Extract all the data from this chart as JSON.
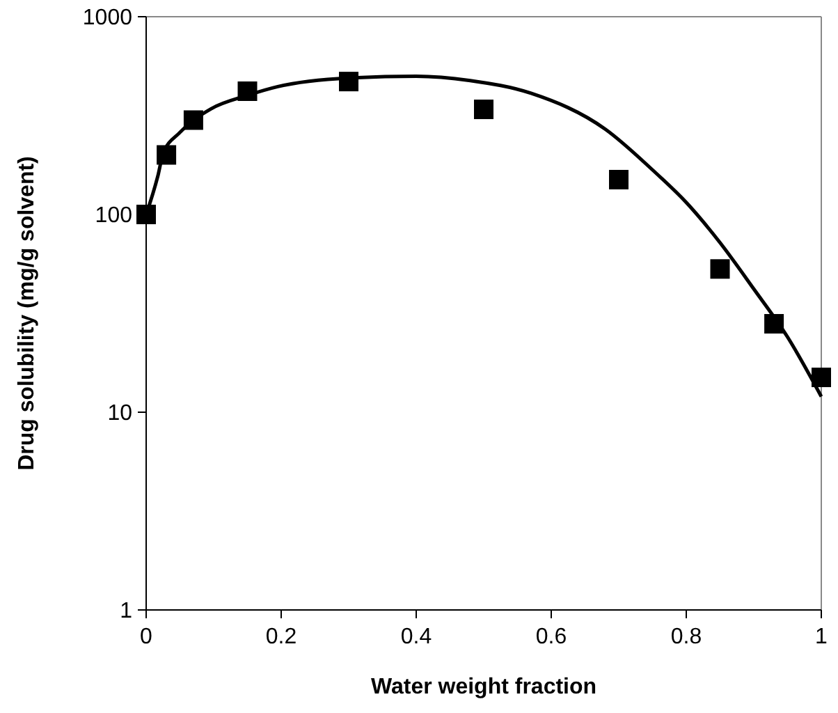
{
  "chart_data": {
    "type": "scatter",
    "xlabel": "Water weight fraction",
    "ylabel": "Drug solubility (mg/g solvent)",
    "log": "y",
    "xlim": [
      0,
      1
    ],
    "xticks": [
      0,
      0.2,
      0.4,
      0.6,
      0.8,
      1
    ],
    "ylim": [
      1,
      1000
    ],
    "yticks": [
      1,
      10,
      100,
      1000
    ],
    "grid": false,
    "series": [
      {
        "marker": "square",
        "color": "#000000",
        "x": [
          0,
          0.03,
          0.07,
          0.15,
          0.3,
          0.5,
          0.7,
          0.85,
          0.93,
          1
        ],
        "values": [
          100,
          200,
          300,
          420,
          470,
          340,
          150,
          53,
          28,
          15
        ]
      },
      {
        "type": "line",
        "marker": "none",
        "line_style": "solid",
        "color": "#000000",
        "x": [
          0,
          0.018,
          0.025,
          0.05,
          0.096,
          0.15,
          0.195,
          0.3,
          0.4,
          0.48,
          0.57,
          0.68,
          0.75,
          0.8,
          0.85,
          0.9,
          0.95,
          1
        ],
        "values": [
          100,
          160,
          203,
          260,
          342,
          400,
          443,
          490,
          500,
          475,
          410,
          270,
          168,
          115,
          72,
          42,
          24,
          12
        ]
      }
    ]
  }
}
